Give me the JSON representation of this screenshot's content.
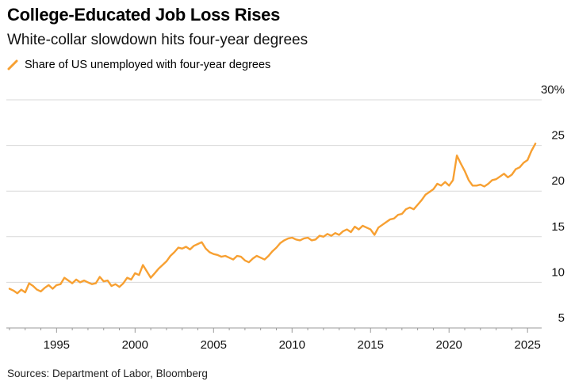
{
  "header": {
    "title": "College-Educated Job Loss Rises",
    "subtitle": "White-collar slowdown hits four-year degrees"
  },
  "legend": {
    "label": "Share of US unemployed with four-year degrees"
  },
  "source": "Sources: Department of Labor, Bloomberg",
  "colors": {
    "series": "#f7a032",
    "grid": "#d9d9d9",
    "axis": "#9a9a9a"
  },
  "chart_data": {
    "type": "line",
    "title": "College-Educated Job Loss Rises",
    "subtitle": "White-collar slowdown hits four-year degrees",
    "xlabel": "",
    "ylabel": "",
    "xlim": [
      1991.8,
      2025.9
    ],
    "ylim": [
      5,
      30
    ],
    "x_ticks": [
      1995,
      2000,
      2005,
      2010,
      2015,
      2020,
      2025
    ],
    "x_tick_labels": [
      "1995",
      "2000",
      "2005",
      "2010",
      "2015",
      "2020",
      "2025"
    ],
    "y_ticks": [
      5,
      10,
      15,
      20,
      25,
      30
    ],
    "y_tick_labels": [
      "5",
      "10",
      "15",
      "20",
      "25",
      "30%"
    ],
    "grid": "horizontal",
    "legend_position": "top-left",
    "series": [
      {
        "name": "Share of US unemployed with four-year degrees",
        "color": "#f7a032",
        "points": [
          [
            1992.0,
            9.3
          ],
          [
            1992.25,
            9.1
          ],
          [
            1992.5,
            8.8
          ],
          [
            1992.75,
            9.2
          ],
          [
            1993.0,
            8.9
          ],
          [
            1993.25,
            9.9
          ],
          [
            1993.5,
            9.6
          ],
          [
            1993.75,
            9.2
          ],
          [
            1994.0,
            9.0
          ],
          [
            1994.25,
            9.4
          ],
          [
            1994.5,
            9.7
          ],
          [
            1994.75,
            9.3
          ],
          [
            1995.0,
            9.7
          ],
          [
            1995.25,
            9.8
          ],
          [
            1995.5,
            10.5
          ],
          [
            1995.75,
            10.2
          ],
          [
            1996.0,
            9.9
          ],
          [
            1996.25,
            10.3
          ],
          [
            1996.5,
            10.0
          ],
          [
            1996.75,
            10.2
          ],
          [
            1997.0,
            10.0
          ],
          [
            1997.25,
            9.8
          ],
          [
            1997.5,
            9.9
          ],
          [
            1997.75,
            10.6
          ],
          [
            1998.0,
            10.1
          ],
          [
            1998.25,
            10.2
          ],
          [
            1998.5,
            9.6
          ],
          [
            1998.75,
            9.8
          ],
          [
            1999.0,
            9.5
          ],
          [
            1999.25,
            9.9
          ],
          [
            1999.5,
            10.5
          ],
          [
            1999.75,
            10.3
          ],
          [
            2000.0,
            11.0
          ],
          [
            2000.25,
            10.8
          ],
          [
            2000.5,
            11.9
          ],
          [
            2000.75,
            11.2
          ],
          [
            2001.0,
            10.5
          ],
          [
            2001.25,
            11.0
          ],
          [
            2001.5,
            11.5
          ],
          [
            2001.75,
            11.9
          ],
          [
            2002.0,
            12.3
          ],
          [
            2002.25,
            12.9
          ],
          [
            2002.5,
            13.3
          ],
          [
            2002.75,
            13.8
          ],
          [
            2003.0,
            13.7
          ],
          [
            2003.25,
            13.9
          ],
          [
            2003.5,
            13.6
          ],
          [
            2003.75,
            14.0
          ],
          [
            2004.0,
            14.2
          ],
          [
            2004.25,
            14.4
          ],
          [
            2004.5,
            13.7
          ],
          [
            2004.75,
            13.3
          ],
          [
            2005.0,
            13.1
          ],
          [
            2005.25,
            13.0
          ],
          [
            2005.5,
            12.8
          ],
          [
            2005.75,
            12.9
          ],
          [
            2006.0,
            12.7
          ],
          [
            2006.25,
            12.5
          ],
          [
            2006.5,
            12.9
          ],
          [
            2006.75,
            12.8
          ],
          [
            2007.0,
            12.4
          ],
          [
            2007.25,
            12.2
          ],
          [
            2007.5,
            12.6
          ],
          [
            2007.75,
            12.9
          ],
          [
            2008.0,
            12.7
          ],
          [
            2008.25,
            12.5
          ],
          [
            2008.5,
            12.9
          ],
          [
            2008.75,
            13.4
          ],
          [
            2009.0,
            13.8
          ],
          [
            2009.25,
            14.3
          ],
          [
            2009.5,
            14.6
          ],
          [
            2009.75,
            14.8
          ],
          [
            2010.0,
            14.9
          ],
          [
            2010.25,
            14.7
          ],
          [
            2010.5,
            14.6
          ],
          [
            2010.75,
            14.8
          ],
          [
            2011.0,
            14.9
          ],
          [
            2011.25,
            14.6
          ],
          [
            2011.5,
            14.7
          ],
          [
            2011.75,
            15.1
          ],
          [
            2012.0,
            15.0
          ],
          [
            2012.25,
            15.3
          ],
          [
            2012.5,
            15.1
          ],
          [
            2012.75,
            15.4
          ],
          [
            2013.0,
            15.2
          ],
          [
            2013.25,
            15.6
          ],
          [
            2013.5,
            15.8
          ],
          [
            2013.75,
            15.5
          ],
          [
            2014.0,
            16.1
          ],
          [
            2014.25,
            15.8
          ],
          [
            2014.5,
            16.2
          ],
          [
            2014.75,
            16.0
          ],
          [
            2015.0,
            15.8
          ],
          [
            2015.25,
            15.2
          ],
          [
            2015.5,
            16.0
          ],
          [
            2015.75,
            16.3
          ],
          [
            2016.0,
            16.6
          ],
          [
            2016.25,
            16.9
          ],
          [
            2016.5,
            17.0
          ],
          [
            2016.75,
            17.4
          ],
          [
            2017.0,
            17.5
          ],
          [
            2017.25,
            18.0
          ],
          [
            2017.5,
            18.2
          ],
          [
            2017.75,
            18.0
          ],
          [
            2018.0,
            18.5
          ],
          [
            2018.25,
            19.0
          ],
          [
            2018.5,
            19.6
          ],
          [
            2018.75,
            19.9
          ],
          [
            2019.0,
            20.2
          ],
          [
            2019.25,
            20.8
          ],
          [
            2019.5,
            20.6
          ],
          [
            2019.75,
            21.0
          ],
          [
            2020.0,
            20.6
          ],
          [
            2020.25,
            21.2
          ],
          [
            2020.5,
            23.9
          ],
          [
            2020.75,
            23.0
          ],
          [
            2021.0,
            22.2
          ],
          [
            2021.25,
            21.2
          ],
          [
            2021.5,
            20.6
          ],
          [
            2021.75,
            20.6
          ],
          [
            2022.0,
            20.7
          ],
          [
            2022.25,
            20.5
          ],
          [
            2022.5,
            20.8
          ],
          [
            2022.75,
            21.2
          ],
          [
            2023.0,
            21.3
          ],
          [
            2023.25,
            21.6
          ],
          [
            2023.5,
            21.9
          ],
          [
            2023.75,
            21.5
          ],
          [
            2024.0,
            21.8
          ],
          [
            2024.25,
            22.4
          ],
          [
            2024.5,
            22.6
          ],
          [
            2024.75,
            23.1
          ],
          [
            2025.0,
            23.4
          ],
          [
            2025.25,
            24.4
          ],
          [
            2025.5,
            25.2
          ]
        ]
      }
    ]
  }
}
